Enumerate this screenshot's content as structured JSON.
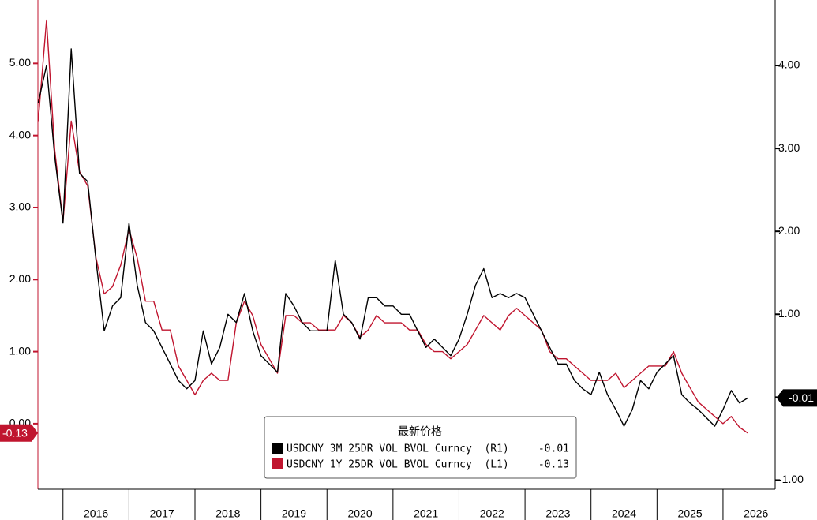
{
  "chart_data": {
    "type": "line",
    "legend_title": "最新价格",
    "x": [
      2015.625,
      2015.75,
      2015.875,
      2016.0,
      2016.125,
      2016.25,
      2016.375,
      2016.5,
      2016.625,
      2016.75,
      2016.875,
      2017.0,
      2017.125,
      2017.25,
      2017.375,
      2017.5,
      2017.625,
      2017.75,
      2017.875,
      2018.0,
      2018.125,
      2018.25,
      2018.375,
      2018.5,
      2018.625,
      2018.75,
      2018.875,
      2019.0,
      2019.125,
      2019.25,
      2019.375,
      2019.5,
      2019.625,
      2019.75,
      2019.875,
      2020.0,
      2020.125,
      2020.25,
      2020.375,
      2020.5,
      2020.625,
      2020.75,
      2020.875,
      2021.0,
      2021.125,
      2021.25,
      2021.375,
      2021.5,
      2021.625,
      2021.75,
      2021.875,
      2022.0,
      2022.125,
      2022.25,
      2022.375,
      2022.5,
      2022.625,
      2022.75,
      2022.875,
      2023.0,
      2023.125,
      2023.25,
      2023.375,
      2023.5,
      2023.625,
      2023.75,
      2023.875,
      2024.0,
      2024.125,
      2024.25,
      2024.375,
      2024.5,
      2024.625,
      2024.75,
      2024.875,
      2025.0,
      2025.125,
      2025.25,
      2025.375,
      2025.5,
      2025.625,
      2025.75,
      2025.875,
      2026.0,
      2026.125,
      2026.25,
      2026.375
    ],
    "series": [
      {
        "name": "USDCNY 3M 25DR VOL BVOL Curncy  (R1)",
        "color": "#000000",
        "axis": "y2",
        "last_value": -0.01,
        "values": [
          3.55,
          4.0,
          2.9,
          2.1,
          4.2,
          2.7,
          2.6,
          1.65,
          0.8,
          1.1,
          1.2,
          2.1,
          1.35,
          0.9,
          0.8,
          0.6,
          0.4,
          0.2,
          0.1,
          0.2,
          0.8,
          0.4,
          0.6,
          1.0,
          0.9,
          1.25,
          0.8,
          0.5,
          0.4,
          0.3,
          1.25,
          1.1,
          0.9,
          0.8,
          0.8,
          0.8,
          1.65,
          1.0,
          0.9,
          0.7,
          1.2,
          1.2,
          1.1,
          1.1,
          1.0,
          1.0,
          0.8,
          0.6,
          0.7,
          0.6,
          0.5,
          0.7,
          1.0,
          1.35,
          1.55,
          1.2,
          1.25,
          1.2,
          1.25,
          1.2,
          1.0,
          0.8,
          0.6,
          0.4,
          0.4,
          0.2,
          0.1,
          0.03,
          0.3,
          0.03,
          -0.15,
          -0.35,
          -0.15,
          0.2,
          0.1,
          0.3,
          0.4,
          0.5,
          0.03,
          -0.07,
          -0.15,
          -0.25,
          -0.35,
          -0.15,
          0.08,
          -0.07,
          -0.01
        ]
      },
      {
        "name": "USDCNY 1Y 25DR VOL BVOL Curncy  (L1)",
        "color": "#c0152f",
        "last_value": -0.13,
        "values": [
          4.2,
          5.6,
          3.8,
          2.8,
          4.2,
          3.5,
          3.3,
          2.3,
          1.8,
          1.9,
          2.2,
          2.7,
          2.3,
          1.7,
          1.7,
          1.3,
          1.3,
          0.8,
          0.6,
          0.4,
          0.6,
          0.7,
          0.6,
          0.6,
          1.4,
          1.7,
          1.5,
          1.1,
          0.9,
          0.7,
          1.5,
          1.5,
          1.4,
          1.4,
          1.3,
          1.3,
          1.3,
          1.5,
          1.4,
          1.2,
          1.3,
          1.5,
          1.4,
          1.4,
          1.4,
          1.3,
          1.3,
          1.1,
          1.0,
          1.0,
          0.9,
          1.0,
          1.1,
          1.3,
          1.5,
          1.4,
          1.3,
          1.5,
          1.6,
          1.5,
          1.4,
          1.3,
          1.0,
          0.9,
          0.9,
          0.8,
          0.7,
          0.6,
          0.6,
          0.6,
          0.7,
          0.5,
          0.6,
          0.7,
          0.8,
          0.8,
          0.8,
          1.0,
          0.7,
          0.5,
          0.3,
          0.2,
          0.1,
          0.0,
          0.1,
          -0.05,
          -0.13
        ]
      }
    ],
    "xlim": [
      2015.62,
      2026.79
    ],
    "xticks": [
      2016,
      2017,
      2018,
      2019,
      2020,
      2021,
      2022,
      2023,
      2024,
      2025,
      2026
    ],
    "ylim": [
      -0.91,
      5.88
    ],
    "yticks": [
      {
        "value": 0,
        "label": "0.00"
      },
      {
        "value": 1,
        "label": "1.00"
      },
      {
        "value": 2,
        "label": "2.00"
      },
      {
        "value": 3,
        "label": "3.00"
      },
      {
        "value": 4,
        "label": "4.00"
      },
      {
        "value": 5,
        "label": "5.00"
      }
    ],
    "y2lim": [
      -1.11,
      4.79
    ],
    "y2ticks": [
      {
        "value": -1,
        "label": "-1.00"
      },
      {
        "value": 0,
        "label": "0.00"
      },
      {
        "value": 1,
        "label": "1.00"
      },
      {
        "value": 2,
        "label": "2.00"
      },
      {
        "value": 3,
        "label": "3.00"
      },
      {
        "value": 4,
        "label": "4.00"
      }
    ]
  }
}
